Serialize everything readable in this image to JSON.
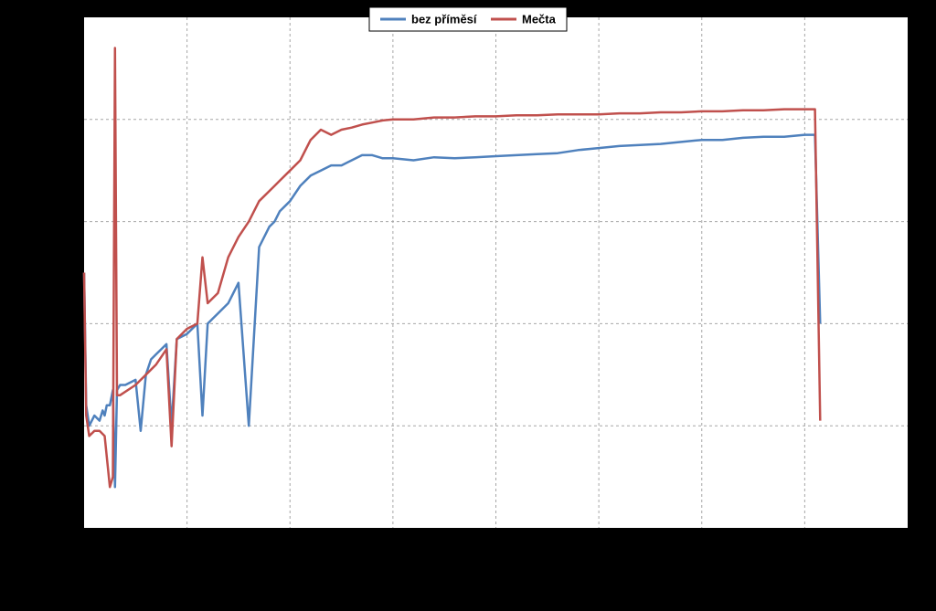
{
  "chart_data": {
    "type": "line",
    "title": "",
    "xlabel": "",
    "ylabel": "",
    "xlim": [
      0,
      8
    ],
    "ylim": [
      0,
      5
    ],
    "grid": true,
    "legend_position": "top-center",
    "background": "#000000",
    "plot_background": "#ffffff",
    "grid_color": "#a6a6a6",
    "legend": [
      {
        "label": "bez příměsí",
        "color": "#4f81bd"
      },
      {
        "label": "Mečta",
        "color": "#c0504d"
      }
    ],
    "series": [
      {
        "name": "bez příměsí",
        "color": "#4f81bd",
        "x": [
          0.0,
          0.02,
          0.05,
          0.1,
          0.15,
          0.18,
          0.2,
          0.22,
          0.25,
          0.28,
          0.3,
          0.32,
          0.35,
          0.4,
          0.5,
          0.55,
          0.6,
          0.65,
          0.7,
          0.8,
          0.85,
          0.9,
          1.0,
          1.1,
          1.15,
          1.2,
          1.25,
          1.3,
          1.4,
          1.5,
          1.6,
          1.7,
          1.8,
          1.85,
          1.9,
          2.0,
          2.1,
          2.2,
          2.3,
          2.4,
          2.5,
          2.6,
          2.7,
          2.8,
          2.9,
          3.0,
          3.2,
          3.4,
          3.6,
          3.8,
          4.0,
          4.2,
          4.4,
          4.6,
          4.8,
          5.0,
          5.2,
          5.4,
          5.6,
          5.8,
          6.0,
          6.2,
          6.4,
          6.6,
          6.8,
          7.0,
          7.1,
          7.15
        ],
        "values": [
          2.5,
          1.2,
          1.0,
          1.1,
          1.05,
          1.15,
          1.1,
          1.2,
          1.2,
          1.35,
          0.4,
          1.35,
          1.4,
          1.4,
          1.45,
          0.95,
          1.5,
          1.65,
          1.7,
          1.8,
          1.0,
          1.85,
          1.9,
          2.0,
          1.1,
          2.0,
          2.05,
          2.1,
          2.2,
          2.4,
          1.0,
          2.75,
          2.95,
          3.0,
          3.1,
          3.2,
          3.35,
          3.45,
          3.5,
          3.55,
          3.55,
          3.6,
          3.65,
          3.65,
          3.62,
          3.62,
          3.6,
          3.63,
          3.62,
          3.63,
          3.64,
          3.65,
          3.66,
          3.67,
          3.7,
          3.72,
          3.74,
          3.75,
          3.76,
          3.78,
          3.8,
          3.8,
          3.82,
          3.83,
          3.83,
          3.85,
          3.85,
          2.0
        ]
      },
      {
        "name": "Mečta",
        "color": "#c0504d",
        "x": [
          0.0,
          0.02,
          0.05,
          0.1,
          0.15,
          0.2,
          0.25,
          0.28,
          0.3,
          0.32,
          0.35,
          0.5,
          0.6,
          0.7,
          0.8,
          0.85,
          0.9,
          1.0,
          1.1,
          1.15,
          1.2,
          1.3,
          1.4,
          1.5,
          1.6,
          1.65,
          1.7,
          1.8,
          1.85,
          1.9,
          2.0,
          2.1,
          2.2,
          2.3,
          2.4,
          2.5,
          2.6,
          2.7,
          2.8,
          2.9,
          3.0,
          3.2,
          3.4,
          3.6,
          3.8,
          4.0,
          4.2,
          4.4,
          4.6,
          4.8,
          5.0,
          5.2,
          5.4,
          5.6,
          5.8,
          6.0,
          6.2,
          6.4,
          6.6,
          6.8,
          7.0,
          7.1,
          7.15
        ],
        "values": [
          2.5,
          1.1,
          0.9,
          0.95,
          0.95,
          0.9,
          0.4,
          0.5,
          4.7,
          1.3,
          1.3,
          1.4,
          1.5,
          1.6,
          1.75,
          0.8,
          1.85,
          1.95,
          2.0,
          2.65,
          2.2,
          2.3,
          2.65,
          2.85,
          3.0,
          3.1,
          3.2,
          3.3,
          3.35,
          3.4,
          3.5,
          3.6,
          3.8,
          3.9,
          3.85,
          3.9,
          3.92,
          3.95,
          3.97,
          3.99,
          4.0,
          4.0,
          4.02,
          4.02,
          4.03,
          4.03,
          4.04,
          4.04,
          4.05,
          4.05,
          4.05,
          4.06,
          4.06,
          4.07,
          4.07,
          4.08,
          4.08,
          4.09,
          4.09,
          4.1,
          4.1,
          4.1,
          1.05
        ]
      }
    ]
  }
}
